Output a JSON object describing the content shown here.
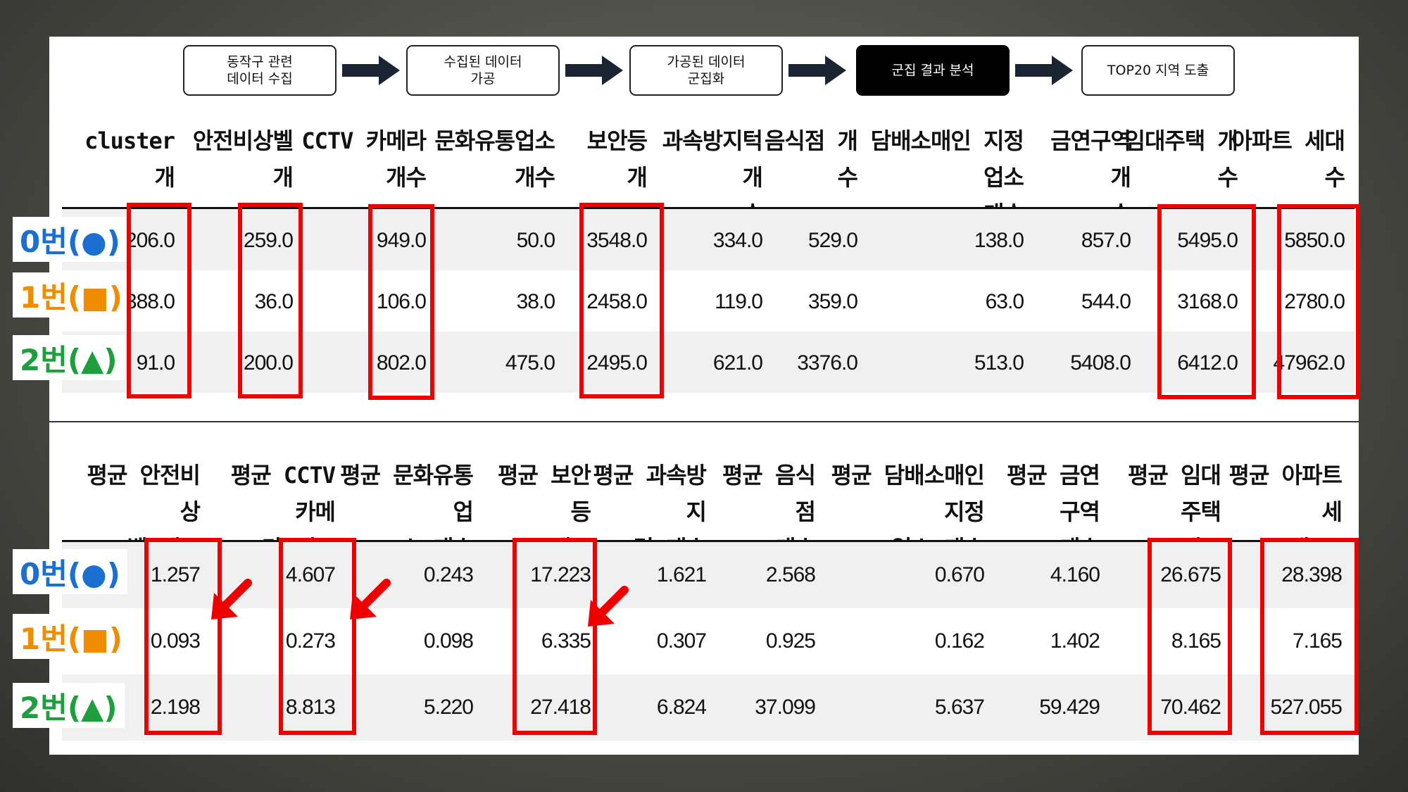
{
  "flow": {
    "steps": [
      {
        "label": "동작구 관련\n데이터 수집",
        "active": false
      },
      {
        "label": "수집된 데이터\n가공",
        "active": false
      },
      {
        "label": "가공된 데이터\n군집화",
        "active": false
      },
      {
        "label": "군집 결과 분석",
        "active": true
      },
      {
        "label": "TOP20 지역 도출",
        "active": false
      }
    ]
  },
  "cluster_labels": [
    {
      "text": "0번(●)",
      "color": "#1a6fd1"
    },
    {
      "text": "1번(■)",
      "color": "#f08c00"
    },
    {
      "text": "2번(▲)",
      "color": "#1e9e3c"
    }
  ],
  "table_counts": {
    "headers": [
      "cluster 개\n수",
      "안전비상벨 개\n수",
      "CCTV 카메라\n개수",
      "문화유통업소\n개수",
      "보안등 개\n수",
      "과속방지턱 개\n수",
      "음식점 개\n수",
      "담배소매인 지정 업소\n개수",
      "금연구역 개\n수",
      "임대주택 개\n수",
      "아파트 세대\n수"
    ],
    "rows": [
      [
        "206.0",
        "259.0",
        "949.0",
        "50.0",
        "3548.0",
        "334.0",
        "529.0",
        "138.0",
        "857.0",
        "5495.0",
        "5850.0"
      ],
      [
        "388.0",
        "36.0",
        "106.0",
        "38.0",
        "2458.0",
        "119.0",
        "359.0",
        "63.0",
        "544.0",
        "3168.0",
        "2780.0"
      ],
      [
        "91.0",
        "200.0",
        "802.0",
        "475.0",
        "2495.0",
        "621.0",
        "3376.0",
        "513.0",
        "5408.0",
        "6412.0",
        "47962.0"
      ]
    ]
  },
  "table_averages": {
    "headers": [
      "평균 안전비상\n벨 개수",
      "평균 CCTV 카메\n라 개수",
      "평균 문화유통업\n소 개수",
      "평균 보안등\n개수",
      "평균 과속방지\n턱 개수",
      "평균 음식점\n개수",
      "평균 담배소매인 지정\n업소 개수",
      "평균 금연구역\n개수",
      "평균 임대주택\n개수",
      "평균 아파트 세\n대 수"
    ],
    "rows": [
      [
        "1.257",
        "4.607",
        "0.243",
        "17.223",
        "1.621",
        "2.568",
        "0.670",
        "4.160",
        "26.675",
        "28.398"
      ],
      [
        "0.093",
        "0.273",
        "0.098",
        "6.335",
        "0.307",
        "0.925",
        "0.162",
        "1.402",
        "8.165",
        "7.165"
      ],
      [
        "2.198",
        "8.813",
        "5.220",
        "27.418",
        "6.824",
        "37.099",
        "5.637",
        "59.429",
        "70.462",
        "527.055"
      ]
    ]
  },
  "colors": {
    "highlight": "#ee0000",
    "active_step": "#000000"
  }
}
